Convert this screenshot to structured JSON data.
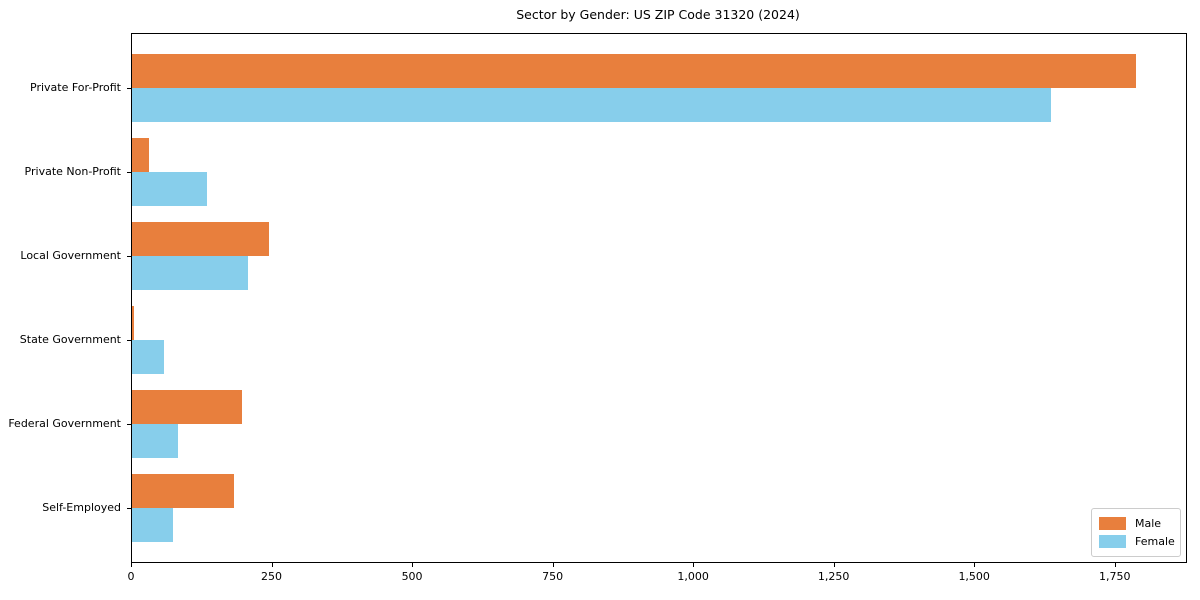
{
  "figure": {
    "background": "#ffffff"
  },
  "chart_data": {
    "type": "bar",
    "orientation": "horizontal",
    "title": "Sector by Gender: US ZIP Code 31320 (2024)",
    "categories": [
      "Private For-Profit",
      "Private Non-Profit",
      "Local Government",
      "State Government",
      "Federal Government",
      "Self-Employed"
    ],
    "series": [
      {
        "name": "Male",
        "color": "#e87f3d",
        "values": [
          1786,
          30,
          244,
          3,
          196,
          181
        ]
      },
      {
        "name": "Female",
        "color": "#87ceeb",
        "values": [
          1635,
          133,
          206,
          57,
          82,
          73
        ]
      }
    ],
    "xlabel": "",
    "ylabel": "",
    "xlim": [
      0,
      1875
    ],
    "x_ticks": [
      0,
      250,
      500,
      750,
      1000,
      1250,
      1500,
      1750
    ],
    "x_tick_labels": [
      "0",
      "250",
      "500",
      "750",
      "1,000",
      "1,250",
      "1,500",
      "1,750"
    ],
    "grid": false,
    "legend_position": "lower right",
    "axis_color": "#000000",
    "text_color": "#000000"
  }
}
